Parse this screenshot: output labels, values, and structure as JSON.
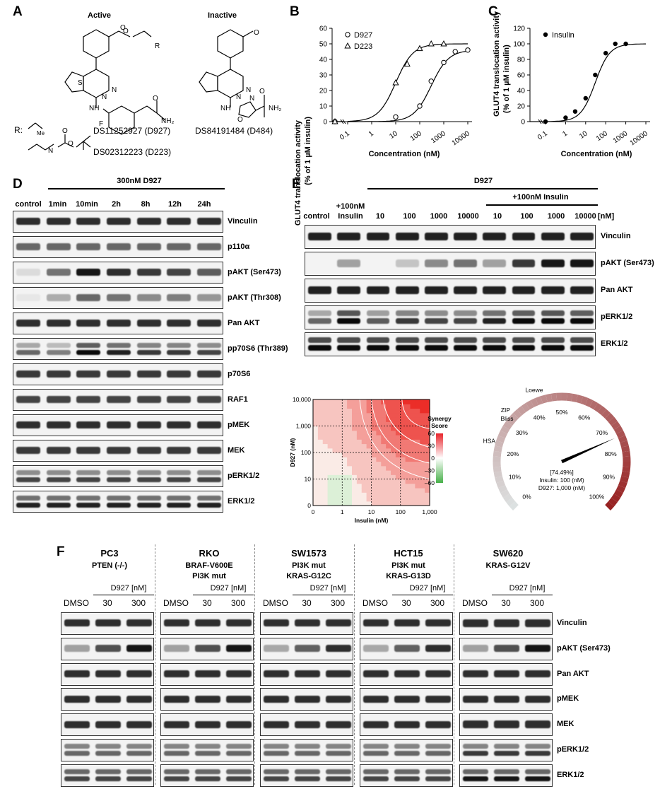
{
  "panel_A": {
    "letter": "A",
    "active_label": "Active",
    "inactive_label": "Inactive",
    "r_label": "R:",
    "me_label": "Me",
    "nh2_label": "NH₂",
    "nh2b_label": "NH₂",
    "f_label": "F",
    "o_label": "O",
    "r_sub": "R",
    "compound1": "DS11252927 (D927)",
    "compound2": "DS02312223 (D223)",
    "compound3": "DS84191484 (D484)"
  },
  "panel_B": {
    "letter": "B",
    "ylabel_line1": "GLUT4 translocation activity",
    "ylabel_line2": "(% of 1 µM insulin)",
    "xlabel": "Concentration (nM)",
    "yticks": [
      "0",
      "10",
      "20",
      "30",
      "40",
      "50",
      "60"
    ],
    "xticks": [
      "0.1",
      "1",
      "10",
      "100",
      "1000",
      "10000"
    ],
    "legend": [
      "D927",
      "D223"
    ]
  },
  "panel_C": {
    "letter": "C",
    "ylabel_line1": "GLUT4 translocation activity",
    "ylabel_line2": "(% of 1 µM insulin)",
    "xlabel": "Concentration (nM)",
    "yticks": [
      "0",
      "20",
      "40",
      "60",
      "80",
      "100",
      "120"
    ],
    "xticks": [
      "0.1",
      "1",
      "10",
      "100",
      "1000",
      "10000"
    ],
    "legend": [
      "Insulin"
    ]
  },
  "chart_data": [
    {
      "type": "scatter",
      "panel": "B",
      "x_scale": "log",
      "ylim": [
        0,
        60
      ],
      "series": [
        {
          "name": "D927",
          "x": [
            0.01,
            10,
            100,
            300,
            1000,
            3000,
            10000
          ],
          "y": [
            0,
            3,
            10,
            26,
            38,
            45,
            46
          ]
        },
        {
          "name": "D223",
          "x": [
            0.01,
            10,
            30,
            100,
            300,
            1000
          ],
          "y": [
            0,
            25,
            37,
            47,
            50,
            50
          ]
        }
      ]
    },
    {
      "type": "scatter",
      "panel": "C",
      "x_scale": "log",
      "ylim": [
        0,
        120
      ],
      "series": [
        {
          "name": "Insulin",
          "x": [
            0.1,
            1,
            3,
            10,
            30,
            100,
            300,
            1000
          ],
          "y": [
            0,
            5,
            13,
            30,
            60,
            88,
            100,
            100
          ]
        }
      ]
    },
    {
      "type": "heatmap",
      "panel": "E-synergy",
      "xlabel": "Insulin (nM)",
      "ylabel": "D927 (nM)",
      "xticks": [
        "0",
        "1",
        "10",
        "100",
        "1,000"
      ],
      "yticks": [
        "0",
        "10",
        "100",
        "1,000",
        "10,000"
      ],
      "colorbar_title": "Synergy Score",
      "colorbar_ticks": [
        "60",
        "30",
        "0",
        "–30",
        "–60"
      ]
    }
  ],
  "panel_D": {
    "letter": "D",
    "treatment": "300nM D927",
    "lanes": [
      "control",
      "1min",
      "10min",
      "2h",
      "8h",
      "12h",
      "24h"
    ],
    "rows": [
      "Vinculin",
      "p110α",
      "pAKT (Ser473)",
      "pAKT (Thr308)",
      "Pan AKT",
      "pp70S6 (Thr389)",
      "p70S6",
      "RAF1",
      "pMEK",
      "MEK",
      "pERK1/2",
      "ERK1/2"
    ]
  },
  "panel_E": {
    "letter": "E",
    "treatment": "D927",
    "insulin_group": "+100nM Insulin",
    "lane_control": "control",
    "lane_insulin_1": "+100nM",
    "lane_insulin_2": "Insulin",
    "lanes_conc": [
      "10",
      "100",
      "1000",
      "10000",
      "10",
      "100",
      "1000",
      "10000"
    ],
    "unit": "[nM]",
    "rows": [
      "Vinculin",
      "pAKT (Ser473)",
      "Pan AKT",
      "pERK1/2",
      "ERK1/2"
    ]
  },
  "gauge": {
    "labels": [
      "0%",
      "10%",
      "20%",
      "30%",
      "40%",
      "50%",
      "60%",
      "70%",
      "80%",
      "90%",
      "100%"
    ],
    "models": [
      "HSA",
      "ZIP",
      "Bliss",
      "Loewe"
    ],
    "readout_value": "[74.49%]",
    "readout_line2": "Insulin: 100 (nM)",
    "readout_line3": "D927: 1,000 (nM)",
    "value": 0.7449
  },
  "panel_F": {
    "letter": "F",
    "cell_lines": [
      {
        "name": "PC3",
        "sub1": "PTEN (-/-)",
        "sub2": ""
      },
      {
        "name": "RKO",
        "sub1": "BRAF-V600E",
        "sub2": "PI3K mut"
      },
      {
        "name": "SW1573",
        "sub1": "PI3K mut",
        "sub2": "KRAS-G12C"
      },
      {
        "name": "HCT15",
        "sub1": "PI3K mut",
        "sub2": "KRAS-G13D"
      },
      {
        "name": "SW620",
        "sub1": "KRAS-G12V",
        "sub2": ""
      }
    ],
    "treatment": "D927 [nM]",
    "lanes": [
      "DMSO",
      "30",
      "300"
    ],
    "rows": [
      "Vinculin",
      "pAKT (Ser473)",
      "Pan AKT",
      "pMEK",
      "MEK",
      "pERK1/2",
      "ERK1/2"
    ]
  }
}
